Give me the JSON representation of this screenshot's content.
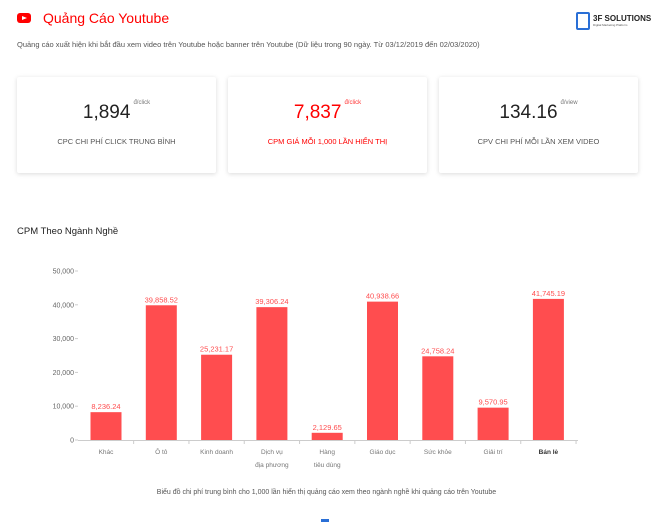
{
  "header": {
    "title": "Quảng Cáo Youtube",
    "icon": "youtube-icon",
    "logo_text": "3F SOLUTIONS",
    "logo_sub": "Digital Marketing Platform",
    "subtitle": "Quảng cáo xuất hiện khi bắt đầu xem video trên Youtube hoặc banner trên Youtube (Dữ liệu trong 90 ngày. Từ 03/12/2019 đến 02/03/2020)"
  },
  "cards": [
    {
      "value": "1,894",
      "unit": "đ/click",
      "label": "CPC CHI PHÍ CLICK TRUNG BÌNH"
    },
    {
      "value": "7,837",
      "unit": "đ/click",
      "label": "CPM GIÁ MỖI 1,000 LẦN HIỂN THỊ"
    },
    {
      "value": "134.16",
      "unit": "đ/view",
      "label": "CPV CHI PHÍ MỖI LẦN XEM VIDEO"
    }
  ],
  "colors": {
    "accent": "#ff0000",
    "bar": "#ff4d4f",
    "bar_label": "#ff4d4f"
  },
  "chart_data": {
    "type": "bar",
    "title": "CPM Theo Ngành Nghề",
    "categories": [
      "Khác",
      "Ô tô",
      "Kinh doanh",
      "Dịch vụ địa phương",
      "Hàng tiêu dùng",
      "Giáo dục",
      "Sức khỏe",
      "Giải trí",
      "Bán lẻ"
    ],
    "category_lines": [
      [
        "Khác"
      ],
      [
        "Ô tô"
      ],
      [
        "Kinh doanh"
      ],
      [
        "Dịch vụ",
        "địa phương"
      ],
      [
        "Hàng",
        "tiêu dùng"
      ],
      [
        "Giáo dục"
      ],
      [
        "Sức khỏe"
      ],
      [
        "Giải trí"
      ],
      [
        "Bán lẻ"
      ]
    ],
    "values": [
      8236.24,
      39858.52,
      25231.17,
      39306.24,
      2129.65,
      40938.66,
      24758.24,
      9570.95,
      41745.19
    ],
    "data_labels": [
      "8,236.24",
      "39,858.52",
      "25,231.17",
      "39,306.24",
      "2,129.65",
      "40,938.66",
      "24,758.24",
      "9,570.95",
      "41,745.19"
    ],
    "yticks": [
      0,
      10000,
      20000,
      30000,
      40000,
      50000
    ],
    "ytick_labels": [
      "0",
      "10,000",
      "20,000",
      "30,000",
      "40,000",
      "50,000"
    ],
    "ylim": [
      0,
      50000
    ],
    "grid": false,
    "caption": "Biểu đồ chi phí trung bình cho 1,000 lần hiển thị quảng cáo xem theo ngành nghề khi quảng cáo trên Youtube"
  }
}
